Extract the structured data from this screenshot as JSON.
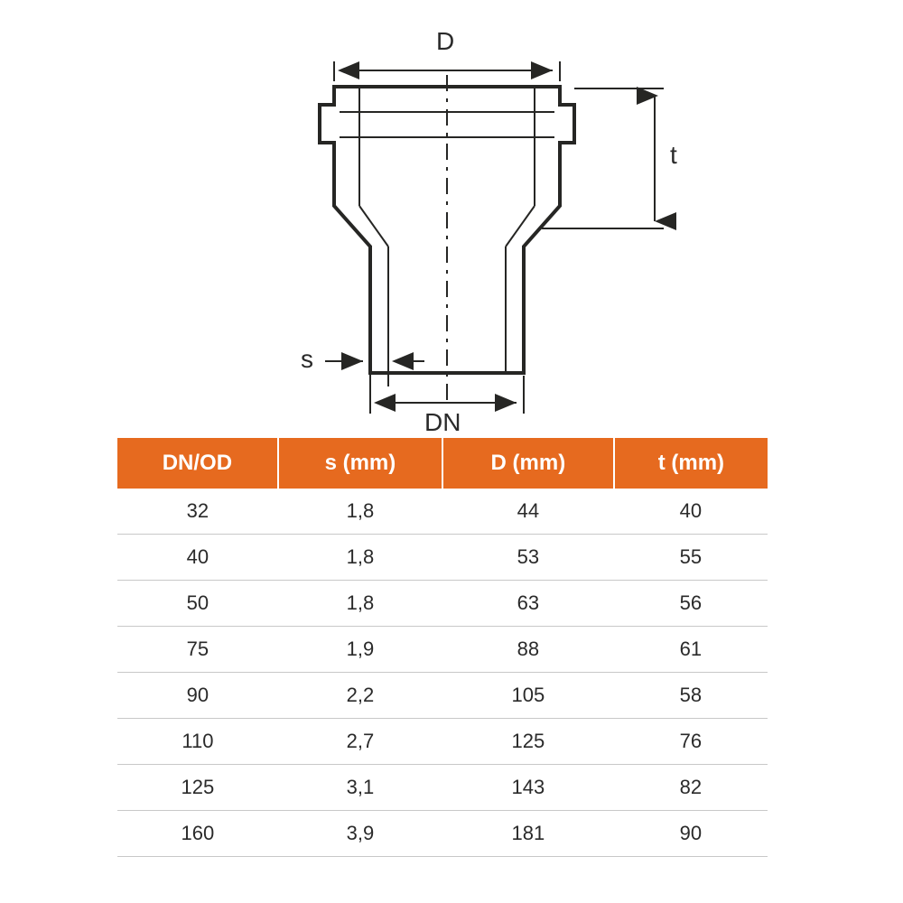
{
  "diagram": {
    "labels": {
      "D": "D",
      "t": "t",
      "s": "s",
      "DN": "DN"
    },
    "stroke_color": "#262624",
    "centerline_color": "#262624",
    "fill_white": "#ffffff",
    "background_color": "#ffffff",
    "label_fontsize": 28,
    "label_color": "#2a2a2a",
    "outline_width": 4,
    "thin_line_width": 2
  },
  "table": {
    "header_bg": "#e66a1f",
    "header_fg": "#ffffff",
    "header_fontsize": 24,
    "cell_fontsize": 22,
    "cell_color": "#2a2a2a",
    "row_border_color": "#c8c8c8",
    "columns": [
      "DN/OD",
      "s (mm)",
      "D (mm)",
      "t (mm)"
    ],
    "rows": [
      [
        "32",
        "1,8",
        "44",
        "40"
      ],
      [
        "40",
        "1,8",
        "53",
        "55"
      ],
      [
        "50",
        "1,8",
        "63",
        "56"
      ],
      [
        "75",
        "1,9",
        "88",
        "61"
      ],
      [
        "90",
        "2,2",
        "105",
        "58"
      ],
      [
        "110",
        "2,7",
        "125",
        "76"
      ],
      [
        "125",
        "3,1",
        "143",
        "82"
      ],
      [
        "160",
        "3,9",
        "181",
        "90"
      ]
    ]
  }
}
